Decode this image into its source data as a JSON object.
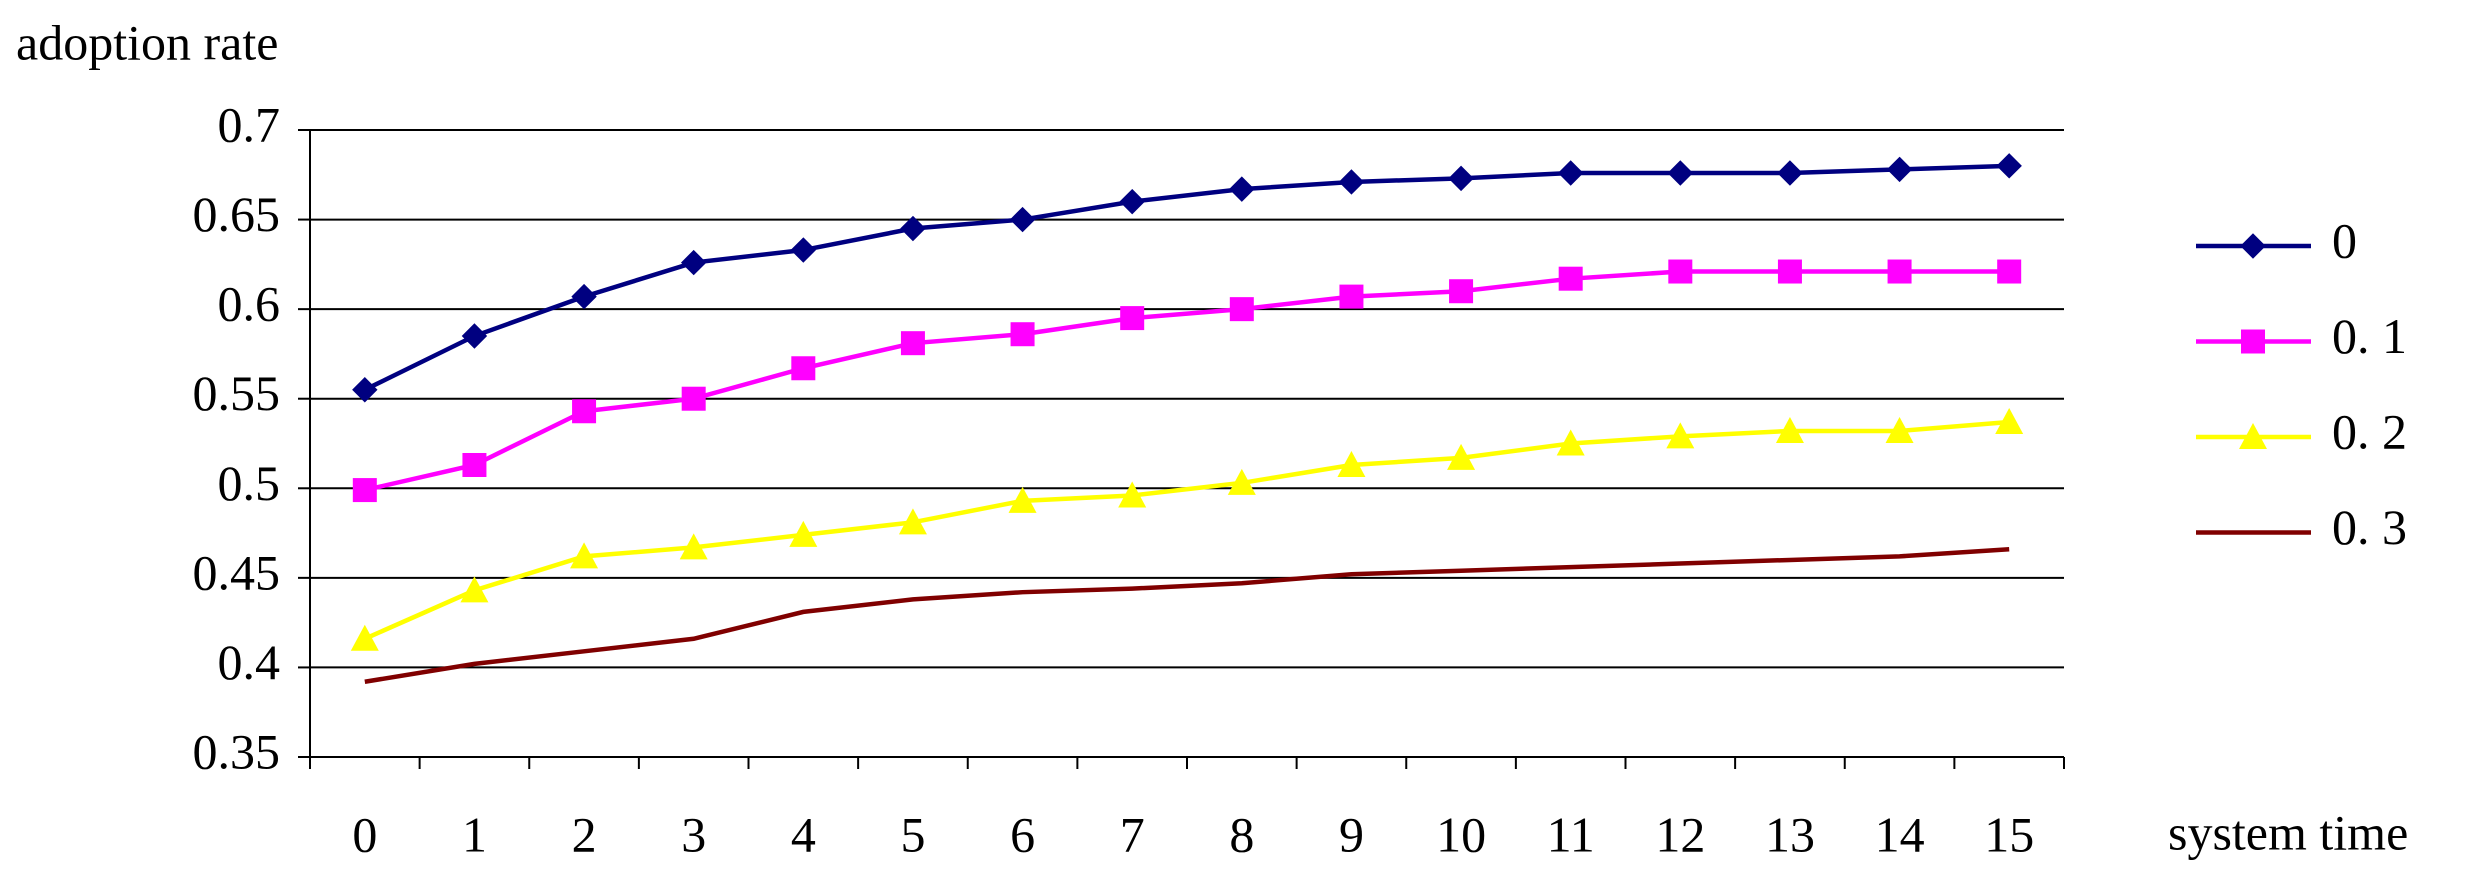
{
  "chart_data": {
    "type": "line",
    "y_label": "adoption rate",
    "x_label": "system time",
    "categories": [
      "0",
      "1",
      "2",
      "3",
      "4",
      "5",
      "6",
      "7",
      "8",
      "9",
      "10",
      "11",
      "12",
      "13",
      "14",
      "15"
    ],
    "series": [
      {
        "name": "0",
        "color": "#000080",
        "marker": "diamond",
        "values": [
          0.555,
          0.585,
          0.607,
          0.626,
          0.633,
          0.645,
          0.65,
          0.66,
          0.667,
          0.671,
          0.673,
          0.676,
          0.676,
          0.676,
          0.678,
          0.68
        ]
      },
      {
        "name": "0. 1",
        "color": "#ff00ff",
        "marker": "square",
        "values": [
          0.499,
          0.513,
          0.543,
          0.55,
          0.567,
          0.581,
          0.586,
          0.595,
          0.6,
          0.607,
          0.61,
          0.617,
          0.621,
          0.621,
          0.621,
          0.621
        ]
      },
      {
        "name": "0. 2",
        "color": "#ffff00",
        "marker": "triangle",
        "values": [
          0.416,
          0.443,
          0.462,
          0.467,
          0.474,
          0.481,
          0.493,
          0.496,
          0.503,
          0.513,
          0.517,
          0.525,
          0.529,
          0.532,
          0.532,
          0.537
        ]
      },
      {
        "name": "0. 3",
        "color": "#800000",
        "marker": "none",
        "values": [
          0.392,
          0.402,
          0.409,
          0.416,
          0.431,
          0.438,
          0.442,
          0.444,
          0.447,
          0.452,
          0.454,
          0.456,
          0.458,
          0.46,
          0.462,
          0.466
        ]
      }
    ],
    "ylim": [
      0.35,
      0.7
    ],
    "yticks": [
      0.35,
      0.4,
      0.45,
      0.5,
      0.55,
      0.6,
      0.65,
      0.7
    ],
    "grid": true,
    "legend": "right"
  }
}
